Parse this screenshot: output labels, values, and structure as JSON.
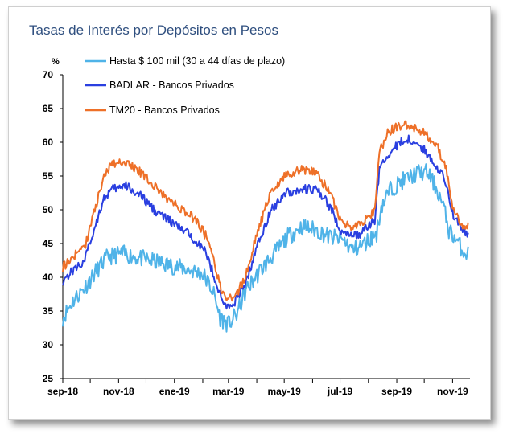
{
  "title": "Tasas de Interés por Depósitos en Pesos",
  "chart_data": {
    "type": "line",
    "title": "Tasas de Interés por Depósitos en Pesos",
    "ylabel": "%",
    "xlabel": "",
    "ylim": [
      25,
      70
    ],
    "yticks": [
      "70",
      "65",
      "60",
      "55",
      "50",
      "45",
      "40",
      "35",
      "30",
      "25"
    ],
    "xtick_labels": [
      "sep-18",
      "nov-18",
      "ene-19",
      "mar-19",
      "may-19",
      "jul-19",
      "sep-19",
      "nov-19"
    ],
    "xtick_dates": [
      "2018-09-01",
      "2018-11-01",
      "2019-01-01",
      "2019-03-01",
      "2019-05-01",
      "2019-07-01",
      "2019-09-01",
      "2019-11-01"
    ],
    "xlim": [
      "2018-09-01",
      "2019-11-20"
    ],
    "legend_position": "top-left",
    "grid": false,
    "series": [
      {
        "name": "Hasta $ 100 mil (30 a 44 días de plazo)",
        "color": "#4fb3e8",
        "points": [
          [
            "2018-09-01",
            34.0
          ],
          [
            "2018-09-12",
            36.5
          ],
          [
            "2018-09-25",
            38.5
          ],
          [
            "2018-10-08",
            41.0
          ],
          [
            "2018-10-20",
            43.0
          ],
          [
            "2018-11-05",
            43.5
          ],
          [
            "2018-11-20",
            43.0
          ],
          [
            "2018-12-05",
            42.5
          ],
          [
            "2018-12-20",
            42.0
          ],
          [
            "2019-01-05",
            41.5
          ],
          [
            "2019-01-20",
            41.0
          ],
          [
            "2019-02-01",
            40.5
          ],
          [
            "2019-02-12",
            38.0
          ],
          [
            "2019-02-20",
            34.0
          ],
          [
            "2019-03-01",
            33.0
          ],
          [
            "2019-03-10",
            34.5
          ],
          [
            "2019-03-20",
            38.0
          ],
          [
            "2019-04-05",
            41.0
          ],
          [
            "2019-04-20",
            43.5
          ],
          [
            "2019-05-05",
            46.0
          ],
          [
            "2019-05-20",
            47.5
          ],
          [
            "2019-06-05",
            47.0
          ],
          [
            "2019-06-20",
            46.0
          ],
          [
            "2019-07-05",
            45.5
          ],
          [
            "2019-07-15",
            44.0
          ],
          [
            "2019-07-28",
            45.0
          ],
          [
            "2019-08-10",
            46.5
          ],
          [
            "2019-08-15",
            50.5
          ],
          [
            "2019-08-25",
            53.0
          ],
          [
            "2019-09-10",
            54.5
          ],
          [
            "2019-09-25",
            55.5
          ],
          [
            "2019-10-05",
            55.5
          ],
          [
            "2019-10-15",
            53.0
          ],
          [
            "2019-10-22",
            50.5
          ],
          [
            "2019-10-28",
            47.0
          ],
          [
            "2019-11-05",
            45.5
          ],
          [
            "2019-11-12",
            44.0
          ],
          [
            "2019-11-18",
            43.5
          ]
        ]
      },
      {
        "name": "BADLAR - Bancos Privados",
        "color": "#2a3fe0",
        "points": [
          [
            "2018-09-01",
            39.5
          ],
          [
            "2018-09-12",
            41.0
          ],
          [
            "2018-09-25",
            42.5
          ],
          [
            "2018-10-05",
            47.0
          ],
          [
            "2018-10-15",
            51.5
          ],
          [
            "2018-10-25",
            53.0
          ],
          [
            "2018-11-10",
            53.5
          ],
          [
            "2018-11-25",
            52.0
          ],
          [
            "2018-12-10",
            50.0
          ],
          [
            "2018-12-25",
            48.5
          ],
          [
            "2019-01-10",
            47.0
          ],
          [
            "2019-01-25",
            45.5
          ],
          [
            "2019-02-05",
            43.5
          ],
          [
            "2019-02-15",
            39.5
          ],
          [
            "2019-02-22",
            36.5
          ],
          [
            "2019-03-01",
            35.5
          ],
          [
            "2019-03-12",
            37.0
          ],
          [
            "2019-03-22",
            40.0
          ],
          [
            "2019-04-01",
            44.5
          ],
          [
            "2019-04-15",
            49.5
          ],
          [
            "2019-05-01",
            52.5
          ],
          [
            "2019-05-20",
            53.0
          ],
          [
            "2019-06-05",
            53.0
          ],
          [
            "2019-06-20",
            50.5
          ],
          [
            "2019-07-01",
            47.0
          ],
          [
            "2019-07-12",
            46.0
          ],
          [
            "2019-07-25",
            46.5
          ],
          [
            "2019-08-08",
            48.5
          ],
          [
            "2019-08-13",
            56.0
          ],
          [
            "2019-08-22",
            58.0
          ],
          [
            "2019-09-05",
            60.0
          ],
          [
            "2019-09-15",
            60.5
          ],
          [
            "2019-09-30",
            59.0
          ],
          [
            "2019-10-15",
            56.5
          ],
          [
            "2019-10-25",
            54.0
          ],
          [
            "2019-11-01",
            49.5
          ],
          [
            "2019-11-10",
            47.5
          ],
          [
            "2019-11-18",
            46.0
          ]
        ]
      },
      {
        "name": "TM20 - Bancos Privados",
        "color": "#ee7028",
        "points": [
          [
            "2018-09-01",
            41.5
          ],
          [
            "2018-09-12",
            43.0
          ],
          [
            "2018-09-25",
            44.5
          ],
          [
            "2018-10-05",
            49.5
          ],
          [
            "2018-10-15",
            54.5
          ],
          [
            "2018-10-25",
            57.0
          ],
          [
            "2018-11-10",
            57.0
          ],
          [
            "2018-11-25",
            55.5
          ],
          [
            "2018-12-10",
            53.5
          ],
          [
            "2018-12-25",
            51.5
          ],
          [
            "2019-01-10",
            50.0
          ],
          [
            "2019-01-25",
            48.5
          ],
          [
            "2019-02-05",
            46.0
          ],
          [
            "2019-02-15",
            41.5
          ],
          [
            "2019-02-22",
            37.5
          ],
          [
            "2019-03-01",
            36.5
          ],
          [
            "2019-03-12",
            38.0
          ],
          [
            "2019-03-22",
            41.0
          ],
          [
            "2019-04-01",
            46.5
          ],
          [
            "2019-04-15",
            52.0
          ],
          [
            "2019-05-01",
            55.0
          ],
          [
            "2019-05-20",
            56.0
          ],
          [
            "2019-06-05",
            55.5
          ],
          [
            "2019-06-20",
            52.5
          ],
          [
            "2019-07-01",
            48.5
          ],
          [
            "2019-07-12",
            47.5
          ],
          [
            "2019-07-25",
            48.0
          ],
          [
            "2019-08-08",
            50.0
          ],
          [
            "2019-08-13",
            58.5
          ],
          [
            "2019-08-22",
            61.5
          ],
          [
            "2019-09-05",
            62.5
          ],
          [
            "2019-09-15",
            62.5
          ],
          [
            "2019-09-30",
            61.5
          ],
          [
            "2019-10-15",
            59.5
          ],
          [
            "2019-10-25",
            56.0
          ],
          [
            "2019-11-01",
            50.0
          ],
          [
            "2019-11-10",
            48.0
          ],
          [
            "2019-11-18",
            47.5
          ]
        ]
      }
    ]
  }
}
